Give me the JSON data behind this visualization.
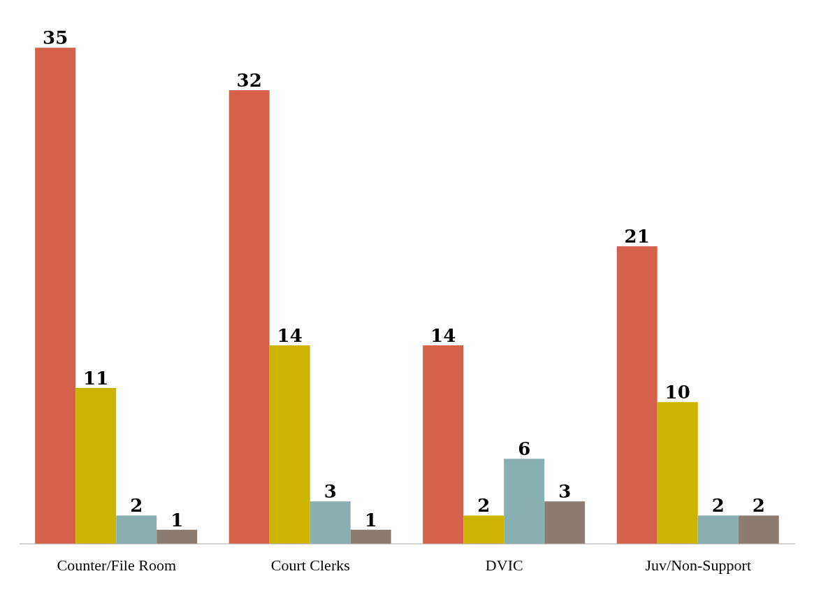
{
  "chart_data": {
    "type": "bar",
    "categories": [
      "Counter/File Room",
      "Court Clerks",
      "DVIC",
      "Juv/Non-Support"
    ],
    "series": [
      {
        "color": "#d4624a",
        "values": [
          35,
          32,
          14,
          21
        ]
      },
      {
        "color": "#ccb400",
        "values": [
          11,
          14,
          2,
          10
        ]
      },
      {
        "color": "#8aafb0",
        "values": [
          2,
          3,
          6,
          2
        ]
      },
      {
        "color": "#8c7b70",
        "values": [
          1,
          1,
          3,
          2
        ]
      }
    ],
    "data_labels": true
  }
}
